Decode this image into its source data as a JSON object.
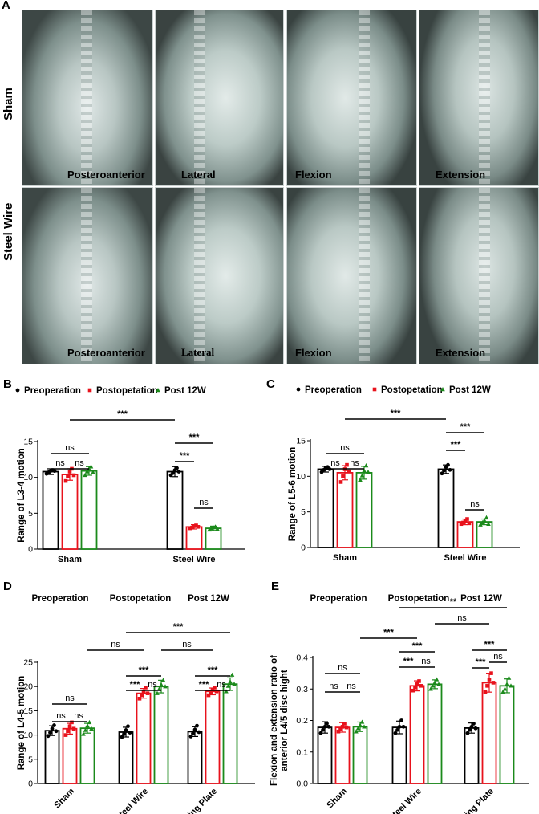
{
  "panels": {
    "A": "A",
    "B": "B",
    "C": "C",
    "D": "D",
    "E": "E"
  },
  "xray": {
    "rows": [
      "Sham",
      "Steel Wire"
    ],
    "views": [
      "Posteroanterior",
      "Lateral",
      "Flexion",
      "Extension"
    ]
  },
  "colors": {
    "preoperation": "#000000",
    "postopetation": "#e8121c",
    "post12w": "#1b8a1b"
  },
  "legend_labels": [
    "Preoperation",
    "Postopetation",
    "Post 12W"
  ],
  "chart_data": [
    {
      "id": "B",
      "type": "bar",
      "legend": [
        "Preoperation",
        "Postopetation",
        "Post 12W"
      ],
      "categories": [
        "Sham",
        "Steel Wire"
      ],
      "ylabel": "Range of L3-4 motion",
      "ylim": [
        0,
        15
      ],
      "yticks": [
        0,
        5,
        10,
        15
      ],
      "series": [
        {
          "name": "Preoperation",
          "values": [
            10.8,
            10.8
          ],
          "err": [
            0.4,
            0.7
          ],
          "points": [
            [
              10.5,
              10.7,
              10.9,
              11.0,
              10.9
            ],
            [
              10.3,
              10.6,
              11.0,
              11.3,
              10.8
            ]
          ]
        },
        {
          "name": "Postopetation",
          "values": [
            10.4,
            3.1
          ],
          "err": [
            0.8,
            0.3
          ],
          "points": [
            [
              9.5,
              10.2,
              10.8,
              11.2,
              10.3
            ],
            [
              2.9,
              3.0,
              3.2,
              3.3,
              3.1
            ]
          ]
        },
        {
          "name": "Post 12W",
          "values": [
            10.9,
            2.9
          ],
          "err": [
            0.6,
            0.3
          ],
          "points": [
            [
              10.3,
              10.8,
              11.2,
              11.5,
              10.7
            ],
            [
              2.7,
              2.9,
              3.0,
              3.1,
              2.8
            ]
          ]
        }
      ],
      "annotations": [
        "ns",
        "ns",
        "ns",
        "***",
        "***",
        "***",
        "ns"
      ]
    },
    {
      "id": "C",
      "type": "bar",
      "legend": [
        "Preoperation",
        "Postopetation",
        "Post 12W"
      ],
      "categories": [
        "Sham",
        "Steel Wire"
      ],
      "ylabel": "Range of L5-6 motion",
      "ylim": [
        0,
        15
      ],
      "yticks": [
        0,
        5,
        10,
        15
      ],
      "series": [
        {
          "name": "Preoperation",
          "values": [
            11.0,
            11.0
          ],
          "err": [
            0.4,
            0.6
          ],
          "points": [
            [
              10.6,
              10.9,
              11.2,
              11.3,
              11.0
            ],
            [
              10.4,
              10.8,
              11.3,
              11.6,
              10.9
            ]
          ]
        },
        {
          "name": "Postopetation",
          "values": [
            10.5,
            3.6
          ],
          "err": [
            1.0,
            0.4
          ],
          "points": [
            [
              9.2,
              10.0,
              11.0,
              11.6,
              10.7
            ],
            [
              3.3,
              3.5,
              3.8,
              4.0,
              3.4
            ]
          ]
        },
        {
          "name": "Post 12W",
          "values": [
            10.5,
            3.6
          ],
          "err": [
            0.9,
            0.4
          ],
          "points": [
            [
              9.5,
              10.1,
              10.8,
              11.5,
              10.6
            ],
            [
              3.2,
              3.5,
              3.8,
              4.2,
              3.3
            ]
          ]
        }
      ],
      "annotations": [
        "ns",
        "ns",
        "ns",
        "***",
        "***",
        "***",
        "ns"
      ]
    },
    {
      "id": "D",
      "type": "bar",
      "legend": [
        "Preoperation",
        "Postopetation",
        "Post 12W"
      ],
      "categories": [
        "Sham",
        "Steel Wire",
        "Locking Plate"
      ],
      "ylabel": "Range of L4-5 motion",
      "ylim": [
        0,
        25
      ],
      "yticks": [
        0,
        5,
        10,
        15,
        20,
        25
      ],
      "series": [
        {
          "name": "Preoperation",
          "values": [
            10.9,
            10.6,
            10.7
          ],
          "err": [
            1.0,
            1.0,
            1.0
          ],
          "points": [
            [
              9.8,
              10.5,
              11.3,
              12.0,
              10.8
            ],
            [
              9.6,
              10.2,
              11.0,
              11.8,
              10.5
            ],
            [
              9.7,
              10.3,
              11.1,
              11.9,
              10.6
            ]
          ]
        },
        {
          "name": "Postopetation",
          "values": [
            11.3,
            18.6,
            19.0
          ],
          "err": [
            1.1,
            1.0,
            0.7
          ],
          "points": [
            [
              10.0,
              10.8,
              11.8,
              12.6,
              11.3
            ],
            [
              17.5,
              18.2,
              19.0,
              19.8,
              18.6
            ],
            [
              18.2,
              18.7,
              19.3,
              19.8,
              19.0
            ]
          ]
        },
        {
          "name": "Post 12W",
          "values": [
            11.4,
            20.0,
            20.5
          ],
          "err": [
            1.0,
            1.3,
            1.3
          ],
          "points": [
            [
              10.2,
              11.0,
              11.9,
              12.6,
              11.3
            ],
            [
              18.6,
              19.5,
              20.4,
              21.3,
              20.0
            ],
            [
              19.0,
              20.1,
              21.0,
              22.4,
              20.5
            ]
          ]
        }
      ],
      "annotations": [
        "ns",
        "ns",
        "ns",
        "***",
        "***",
        "ns",
        "***",
        "***",
        "ns",
        "ns",
        "ns",
        "***"
      ]
    },
    {
      "id": "E",
      "type": "bar",
      "legend": [
        "Preoperation",
        "Postopetation",
        "Post 12W"
      ],
      "categories": [
        "Sham",
        "Steel Wire",
        "Locking Plate"
      ],
      "ylabel_line1": "Flexion and extension ratio of",
      "ylabel_line2": "anterior L4/5 disc hight",
      "ylim": [
        0,
        0.4
      ],
      "yticks": [
        "0.0",
        "0.1",
        "0.2",
        "0.3",
        "0.4"
      ],
      "series": [
        {
          "name": "Preoperation",
          "values": [
            0.178,
            0.178,
            0.176
          ],
          "err": [
            0.018,
            0.02,
            0.016
          ],
          "points": [
            [
              0.16,
              0.17,
              0.18,
              0.19,
              0.18
            ],
            [
              0.16,
              0.17,
              0.18,
              0.2,
              0.18
            ],
            [
              0.16,
              0.17,
              0.18,
              0.19,
              0.175
            ]
          ]
        },
        {
          "name": "Postopetation",
          "values": [
            0.178,
            0.31,
            0.32
          ],
          "err": [
            0.015,
            0.016,
            0.03
          ],
          "points": [
            [
              0.165,
              0.172,
              0.18,
              0.19,
              0.178
            ],
            [
              0.295,
              0.305,
              0.315,
              0.325,
              0.31
            ],
            [
              0.29,
              0.31,
              0.33,
              0.35,
              0.32
            ]
          ]
        },
        {
          "name": "Post 12W",
          "values": [
            0.18,
            0.315,
            0.31
          ],
          "err": [
            0.015,
            0.014,
            0.022
          ],
          "points": [
            [
              0.165,
              0.175,
              0.185,
              0.195,
              0.18
            ],
            [
              0.3,
              0.31,
              0.32,
              0.33,
              0.315
            ],
            [
              0.29,
              0.3,
              0.315,
              0.335,
              0.31
            ]
          ]
        }
      ],
      "annotations": [
        "ns",
        "ns",
        "ns",
        "***",
        "***",
        "ns",
        "***",
        "***",
        "ns",
        "***",
        "ns",
        "**"
      ]
    }
  ]
}
